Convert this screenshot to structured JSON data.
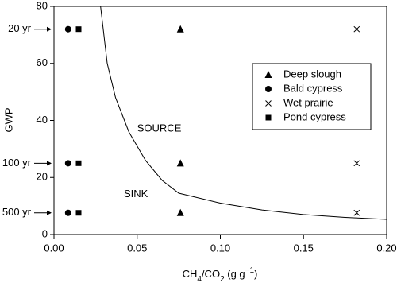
{
  "chart_data": {
    "type": "scatter",
    "ylabel": "GWP",
    "xlabel_parts": [
      {
        "text": "CH",
        "shift": null
      },
      {
        "text": "4",
        "shift": "sub"
      },
      {
        "text": "/CO",
        "shift": null
      },
      {
        "text": "2",
        "shift": "sub"
      },
      {
        "text": " (g g",
        "shift": null
      },
      {
        "text": "−1",
        "shift": "sup"
      },
      {
        "text": ")",
        "shift": null
      }
    ],
    "xlim": [
      0,
      0.2
    ],
    "ylim": [
      0,
      80
    ],
    "xticks": [
      {
        "value": 0,
        "label": "0.00"
      },
      {
        "value": 0.05,
        "label": "0.05"
      },
      {
        "value": 0.1,
        "label": "0.10"
      },
      {
        "value": 0.15,
        "label": "0.15"
      },
      {
        "value": 0.2,
        "label": "0.20"
      }
    ],
    "yticks": [
      0,
      20,
      40,
      60,
      80
    ],
    "series": [
      {
        "name": "Deep slough",
        "marker": "triangle",
        "color": "#000000",
        "x": [
          0.076,
          0.076,
          0.076
        ],
        "values": [
          72,
          25,
          7.6
        ]
      },
      {
        "name": "Bald cypress",
        "marker": "circle",
        "color": "#000000",
        "x": [
          0.0085,
          0.0085,
          0.0085
        ],
        "values": [
          72,
          25,
          7.6
        ]
      },
      {
        "name": "Wet prairie",
        "marker": "cross",
        "color": "#000000",
        "x": [
          0.182,
          0.182,
          0.182
        ],
        "values": [
          72,
          25,
          7.6
        ]
      },
      {
        "name": "Pond cypress",
        "marker": "square",
        "color": "#000000",
        "x": [
          0.0148,
          0.0148,
          0.0148
        ],
        "values": [
          72,
          25,
          7.6
        ]
      }
    ],
    "curve": {
      "x": [
        0.028,
        0.032,
        0.037,
        0.045,
        0.055,
        0.065,
        0.075,
        0.1,
        0.125,
        0.15,
        0.175,
        0.2
      ],
      "values": [
        80,
        60,
        48,
        36,
        26,
        19,
        14.5,
        11,
        8.6,
        7,
        6,
        5.3
      ]
    },
    "horizon_labels": [
      {
        "text": "20 yr",
        "value": 72
      },
      {
        "text": "100 yr",
        "value": 25
      },
      {
        "text": "500 yr",
        "value": 7.6
      }
    ],
    "region_labels": [
      {
        "text": "SOURCE",
        "x": 0.05,
        "value": 37
      },
      {
        "text": "SINK",
        "x": 0.042,
        "value": 14
      }
    ],
    "legend": "upper right"
  }
}
